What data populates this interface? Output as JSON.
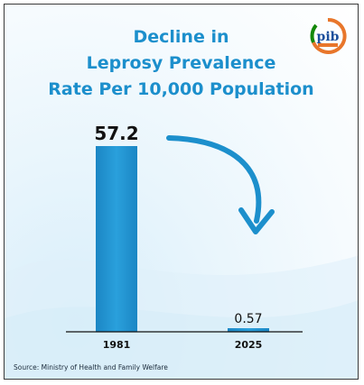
{
  "title_lines": [
    "Decline in",
    "Leprosy Prevalence",
    "Rate Per 10,000 Population"
  ],
  "source": "Source: Ministry of Health and Family Welfare",
  "logo": {
    "icon": "pib-logo",
    "primary": "#e8762b",
    "secondary": "#138808",
    "accent": "#1c4f9c"
  },
  "colors": {
    "title": "#1c8fcc",
    "bar": "#1c8fcc",
    "arrow": "#1c8fcc"
  },
  "chart_data": {
    "type": "bar",
    "categories": [
      "1981",
      "2025"
    ],
    "values": [
      57.2,
      0.57
    ],
    "value_labels": [
      "57.2",
      "0.57"
    ],
    "title": "Decline in Leprosy Prevalence Rate Per 10,000 Population",
    "xlabel": "",
    "ylabel": "",
    "ylim": [
      0,
      57.2
    ],
    "grid": false,
    "legend": "none"
  }
}
